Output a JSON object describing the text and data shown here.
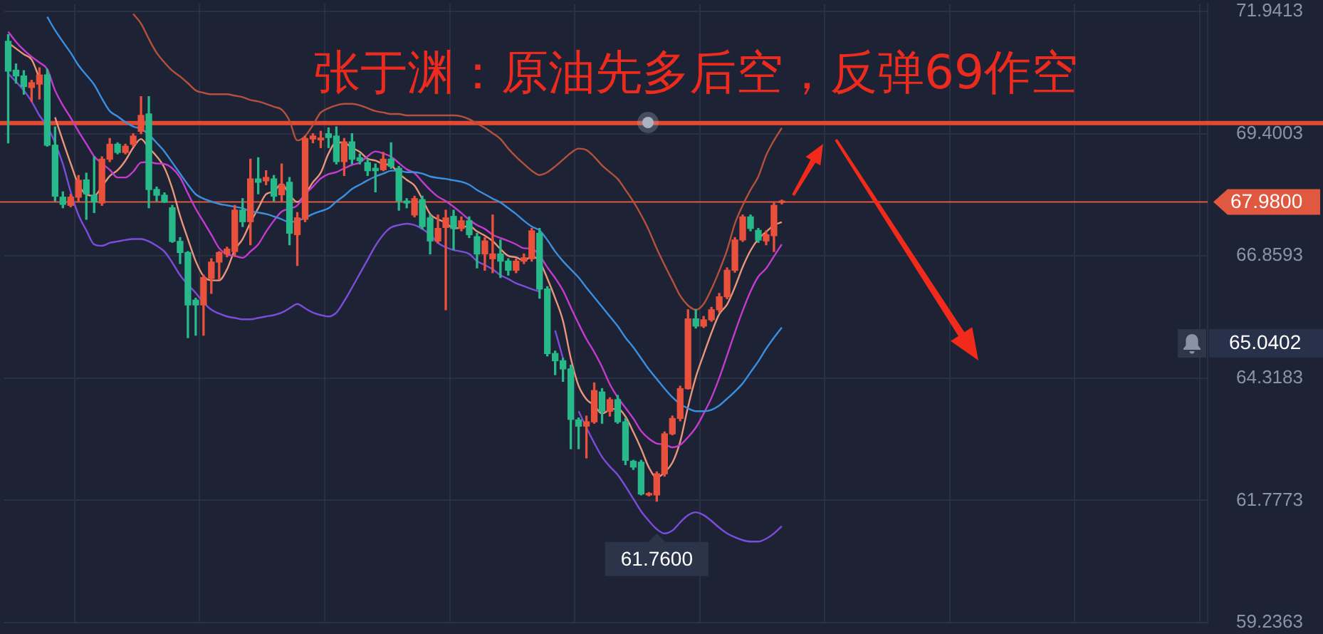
{
  "chart_data": {
    "type": "candlestick",
    "title": "张于渊：原油先多后空，反弹69作空",
    "categories": [
      null,
      null,
      null,
      null,
      null,
      null,
      null,
      null,
      null,
      null,
      null,
      null,
      null,
      null,
      null,
      null,
      null,
      null,
      null,
      null,
      null,
      null,
      null,
      null,
      null,
      null,
      null,
      null,
      null,
      null,
      null,
      null,
      null,
      null,
      null,
      null,
      null,
      null,
      null,
      null,
      null,
      null,
      null,
      null,
      null,
      null,
      null,
      null,
      null,
      null,
      null,
      null,
      null,
      null,
      null,
      null,
      null,
      null,
      null,
      null,
      null,
      null,
      null,
      null,
      null,
      null,
      null,
      null,
      null,
      null,
      null,
      null,
      null,
      null,
      null,
      null,
      null,
      null,
      null,
      null,
      null,
      null,
      null,
      null,
      null,
      null,
      null,
      null,
      null,
      null,
      null,
      null,
      null,
      null,
      null,
      null,
      null,
      null,
      null,
      null,
      null,
      null,
      null,
      null,
      null,
      null,
      null,
      null,
      null,
      null,
      null,
      null,
      null,
      null,
      null,
      null,
      null,
      null,
      null,
      null,
      null,
      null,
      null,
      null,
      null,
      null,
      null,
      null,
      null,
      null,
      null,
      null,
      null,
      null,
      null,
      null,
      null,
      null,
      null,
      null,
      null,
      null,
      null,
      null,
      null,
      null,
      null,
      null,
      null,
      null,
      null,
      null,
      null,
      null
    ],
    "ohlc": [
      [
        71.32,
        71.46,
        69.21,
        70.7
      ],
      [
        70.72,
        70.85,
        70.45,
        70.6
      ],
      [
        70.6,
        70.71,
        70.22,
        70.38
      ],
      [
        70.36,
        70.51,
        70.07,
        70.46
      ],
      [
        70.43,
        70.77,
        70.12,
        70.62
      ],
      [
        70.62,
        70.74,
        69.14,
        69.16
      ],
      [
        69.16,
        69.54,
        68.0,
        68.1
      ],
      [
        68.08,
        68.19,
        67.86,
        67.93
      ],
      [
        67.91,
        68.14,
        67.88,
        68.08
      ],
      [
        68.08,
        68.53,
        68.0,
        68.43
      ],
      [
        68.44,
        68.58,
        67.62,
        68.15
      ],
      [
        68.12,
        68.92,
        67.76,
        67.98
      ],
      [
        67.96,
        68.92,
        67.91,
        68.87
      ],
      [
        68.87,
        69.3,
        68.82,
        69.18
      ],
      [
        69.18,
        69.21,
        68.98,
        69.01
      ],
      [
        69.01,
        69.18,
        68.98,
        69.14
      ],
      [
        69.18,
        69.4,
        69.14,
        69.35
      ],
      [
        69.45,
        70.17,
        69.4,
        69.78
      ],
      [
        69.81,
        70.17,
        67.86,
        68.24
      ],
      [
        68.24,
        68.29,
        68.0,
        68.12
      ],
      [
        68.12,
        68.17,
        67.97,
        67.98
      ],
      [
        67.86,
        67.91,
        67.14,
        67.16
      ],
      [
        67.16,
        67.24,
        66.7,
        66.93
      ],
      [
        66.93,
        66.95,
        65.16,
        65.84
      ],
      [
        65.94,
        65.98,
        65.21,
        65.84
      ],
      [
        65.84,
        66.46,
        65.21,
        66.41
      ],
      [
        66.39,
        66.8,
        66.08,
        66.73
      ],
      [
        66.73,
        66.95,
        66.37,
        66.93
      ],
      [
        66.9,
        67.04,
        66.84,
        67.0
      ],
      [
        66.95,
        67.91,
        66.85,
        67.81
      ],
      [
        67.81,
        68.05,
        67.47,
        67.57
      ],
      [
        67.57,
        68.87,
        67.09,
        68.46
      ],
      [
        68.46,
        68.9,
        68.15,
        68.39
      ],
      [
        68.42,
        68.63,
        68.34,
        68.49
      ],
      [
        68.46,
        68.53,
        68.0,
        68.1
      ],
      [
        68.13,
        68.77,
        68.0,
        68.34
      ],
      [
        68.39,
        68.49,
        67.09,
        67.33
      ],
      [
        67.3,
        67.76,
        66.66,
        67.65
      ],
      [
        67.62,
        69.35,
        67.57,
        69.3
      ],
      [
        69.29,
        69.4,
        69.21,
        69.35
      ],
      [
        69.27,
        69.45,
        69.11,
        69.31
      ],
      [
        69.4,
        69.52,
        69.11,
        69.32
      ],
      [
        69.35,
        69.54,
        68.77,
        68.82
      ],
      [
        68.82,
        69.3,
        68.53,
        69.23
      ],
      [
        69.23,
        69.4,
        68.77,
        68.87
      ],
      [
        68.9,
        68.98,
        68.77,
        68.84
      ],
      [
        68.8,
        68.87,
        68.53,
        68.63
      ],
      [
        68.68,
        68.77,
        68.19,
        68.63
      ],
      [
        68.65,
        69.01,
        68.63,
        68.87
      ],
      [
        68.87,
        69.21,
        68.68,
        68.72
      ],
      [
        68.68,
        68.72,
        67.81,
        68.0
      ],
      [
        68.0,
        68.05,
        67.86,
        67.96
      ],
      [
        67.71,
        68.1,
        67.67,
        68.05
      ],
      [
        68.03,
        68.1,
        67.42,
        67.47
      ],
      [
        67.65,
        67.71,
        66.9,
        67.17
      ],
      [
        67.17,
        67.71,
        67.13,
        67.43
      ],
      [
        67.45,
        67.81,
        65.74,
        67.65
      ],
      [
        67.68,
        67.81,
        66.99,
        67.43
      ],
      [
        67.43,
        67.67,
        67.38,
        67.59
      ],
      [
        67.59,
        67.67,
        67.24,
        67.3
      ],
      [
        67.26,
        67.33,
        66.61,
        66.9
      ],
      [
        66.9,
        67.24,
        66.56,
        67.17
      ],
      [
        66.8,
        67.71,
        66.51,
        66.9
      ],
      [
        66.9,
        67.19,
        66.41,
        66.75
      ],
      [
        66.75,
        66.8,
        66.46,
        66.56
      ],
      [
        66.56,
        66.8,
        66.51,
        66.75
      ],
      [
        66.75,
        66.9,
        66.7,
        66.82
      ],
      [
        66.8,
        67.43,
        66.75,
        67.38
      ],
      [
        67.33,
        67.43,
        65.98,
        66.17
      ],
      [
        66.17,
        66.22,
        64.78,
        64.83
      ],
      [
        64.83,
        64.88,
        64.39,
        64.68
      ],
      [
        64.68,
        64.73,
        64.25,
        64.51
      ],
      [
        64.51,
        64.59,
        62.85,
        63.46
      ],
      [
        63.45,
        63.49,
        62.85,
        63.32
      ],
      [
        63.32,
        63.53,
        62.66,
        63.41
      ],
      [
        63.41,
        64.22,
        63.38,
        64.06
      ],
      [
        64.03,
        64.1,
        63.38,
        63.63
      ],
      [
        63.63,
        63.91,
        63.53,
        63.87
      ],
      [
        63.87,
        63.96,
        63.38,
        63.41
      ],
      [
        63.41,
        63.48,
        62.52,
        62.61
      ],
      [
        62.59,
        62.61,
        62.42,
        62.47
      ],
      [
        62.57,
        62.61,
        61.89,
        61.91
      ],
      [
        61.89,
        61.94,
        61.87,
        61.91
      ],
      [
        61.89,
        62.37,
        61.76,
        62.33
      ],
      [
        62.33,
        63.2,
        62.28,
        63.16
      ],
      [
        63.16,
        63.53,
        63.14,
        63.48
      ],
      [
        63.48,
        64.15,
        63.43,
        64.1
      ],
      [
        64.1,
        65.74,
        64.09,
        65.55
      ],
      [
        65.55,
        65.74,
        65.36,
        65.4
      ],
      [
        65.4,
        65.6,
        65.37,
        65.53
      ],
      [
        65.53,
        65.79,
        65.5,
        65.74
      ],
      [
        65.74,
        66.08,
        65.69,
        66.01
      ],
      [
        66.01,
        66.61,
        65.97,
        66.56
      ],
      [
        66.56,
        67.24,
        66.52,
        67.19
      ],
      [
        67.19,
        67.71,
        67.16,
        67.67
      ],
      [
        67.67,
        67.71,
        67.38,
        67.43
      ],
      [
        67.39,
        67.43,
        67.14,
        67.19
      ],
      [
        67.17,
        67.38,
        67.09,
        67.3
      ],
      [
        67.28,
        67.96,
        66.95,
        67.91
      ],
      [
        67.97,
        68.02,
        67.94,
        67.98
      ],
      null,
      null,
      null,
      null,
      null,
      null,
      null,
      null,
      null,
      null,
      null,
      null,
      null,
      null,
      null,
      null,
      null,
      null,
      null,
      null,
      null,
      null,
      null,
      null,
      null,
      null,
      null,
      null,
      null,
      null,
      null,
      null,
      null,
      null,
      null,
      null,
      null,
      null,
      null,
      null,
      null,
      null,
      null,
      null,
      null,
      null,
      null,
      null,
      null,
      null,
      null,
      null,
      null,
      null
    ],
    "colors": [
      "#27b98a",
      "#27b98a",
      "#27b98a",
      "#e9513d",
      "#e9513d",
      "#27b98a",
      "#27b98a",
      "#27b98a",
      "#e9513d",
      "#e9513d",
      "#27b98a",
      "#27b98a",
      "#e9513d",
      "#e9513d",
      "#27b98a",
      "#e9513d",
      "#e9513d",
      "#e9513d",
      "#27b98a",
      "#27b98a",
      "#27b98a",
      "#27b98a",
      "#27b98a",
      "#27b98a",
      "#27b98a",
      "#e9513d",
      "#e9513d",
      "#e9513d",
      "#e9513d",
      "#e9513d",
      "#27b98a",
      "#e9513d",
      "#27b98a",
      "#e9513d",
      "#27b98a",
      "#e9513d",
      "#27b98a",
      "#e9513d",
      "#e9513d",
      "#e9513d",
      "#e9513d",
      "#27b98a",
      "#27b98a",
      "#e9513d",
      "#27b98a",
      "#27b98a",
      "#27b98a",
      "#27b98a",
      "#e9513d",
      "#27b98a",
      "#27b98a",
      "#27b98a",
      "#e9513d",
      "#27b98a",
      "#27b98a",
      "#e9513d",
      "#e9513d",
      "#27b98a",
      "#e9513d",
      "#27b98a",
      "#27b98a",
      "#e9513d",
      "#e9513d",
      "#27b98a",
      "#27b98a",
      "#e9513d",
      "#e9513d",
      "#e9513d",
      "#27b98a",
      "#27b98a",
      "#27b98a",
      "#27b98a",
      "#27b98a",
      "#27b98a",
      "#e9513d",
      "#e9513d",
      "#27b98a",
      "#e9513d",
      "#27b98a",
      "#27b98a",
      "#27b98a",
      "#27b98a",
      "#e9513d",
      "#e9513d",
      "#e9513d",
      "#e9513d",
      "#e9513d",
      "#e9513d",
      "#27b98a",
      "#e9513d",
      "#e9513d",
      "#e9513d",
      "#e9513d",
      "#e9513d",
      "#e9513d",
      "#27b98a",
      "#27b98a",
      "#e9513d",
      "#e9513d",
      "#e9513d",
      null,
      null,
      null,
      null,
      null,
      null,
      null,
      null,
      null,
      null,
      null,
      null,
      null,
      null,
      null,
      null,
      null,
      null,
      null,
      null,
      null,
      null,
      null,
      null,
      null,
      null,
      null,
      null,
      null,
      null,
      null,
      null,
      null,
      null,
      null,
      null,
      null,
      null,
      null,
      null,
      null,
      null,
      null,
      null,
      null,
      null,
      null,
      null,
      null,
      null,
      null,
      null,
      null,
      null
    ],
    "series": [
      {
        "type": "line",
        "color": "#b4503c",
        "values": [
          null,
          null,
          null,
          null,
          null,
          null,
          null,
          null,
          null,
          null,
          null,
          null,
          null,
          null,
          null,
          null,
          71.89,
          71.69,
          71.37,
          71.08,
          70.88,
          70.71,
          70.59,
          70.45,
          70.3,
          70.25,
          70.22,
          70.22,
          70.22,
          70.19,
          70.16,
          70.1,
          70.07,
          70.02,
          69.96,
          69.9,
          69.67,
          69.26,
          69.35,
          69.58,
          69.84,
          69.93,
          69.99,
          70.02,
          70.02,
          69.99,
          69.93,
          69.87,
          69.84,
          69.81,
          69.81,
          69.78,
          69.78,
          69.78,
          69.78,
          69.78,
          69.78,
          69.78,
          69.76,
          69.7,
          69.61,
          69.52,
          69.41,
          69.29,
          69.09,
          68.92,
          68.77,
          68.63,
          68.54,
          68.6,
          68.72,
          68.86,
          69.0,
          69.09,
          69.06,
          68.92,
          68.74,
          68.6,
          68.46,
          68.23,
          67.99,
          67.71,
          67.39,
          67.01,
          66.67,
          66.35,
          66.03,
          65.83,
          65.74,
          65.86,
          66.17,
          66.55,
          66.98,
          67.53,
          67.91,
          68.23,
          68.51,
          68.95,
          69.26,
          69.52,
          null,
          null,
          null,
          null,
          null,
          null,
          null,
          null,
          null,
          null,
          null,
          null,
          null,
          null,
          null,
          null,
          null,
          null,
          null,
          null,
          null,
          null,
          null,
          null,
          null,
          null,
          null,
          null,
          null,
          null,
          null,
          null,
          null,
          null,
          null,
          null,
          null,
          null,
          null,
          null,
          null,
          null,
          null,
          null,
          null,
          null,
          null,
          null,
          null,
          null,
          null,
          null,
          null,
          null
        ]
      },
      {
        "type": "line",
        "color": "#3a8fe0",
        "values": [
          null,
          null,
          null,
          null,
          null,
          71.83,
          71.55,
          71.31,
          71.08,
          70.82,
          70.62,
          70.42,
          70.13,
          69.87,
          69.76,
          69.64,
          69.55,
          69.5,
          69.38,
          69.21,
          69.03,
          68.8,
          68.57,
          68.34,
          68.14,
          68.05,
          67.99,
          67.94,
          67.91,
          67.88,
          67.85,
          67.79,
          67.76,
          67.73,
          67.68,
          67.62,
          67.56,
          67.59,
          67.65,
          67.73,
          67.79,
          67.85,
          67.99,
          68.11,
          68.25,
          68.34,
          68.43,
          68.51,
          68.57,
          68.63,
          68.63,
          68.6,
          68.6,
          68.57,
          68.51,
          68.48,
          68.46,
          68.43,
          68.4,
          68.34,
          68.23,
          68.14,
          68.05,
          67.97,
          67.85,
          67.73,
          67.59,
          67.47,
          67.39,
          67.19,
          66.95,
          66.75,
          66.58,
          66.41,
          66.2,
          66.0,
          65.8,
          65.6,
          65.4,
          65.16,
          64.96,
          64.73,
          64.5,
          64.3,
          64.1,
          63.92,
          63.78,
          63.69,
          63.63,
          63.63,
          63.66,
          63.75,
          63.89,
          64.04,
          64.21,
          64.44,
          64.67,
          64.93,
          65.16,
          65.37,
          null,
          null,
          null,
          null,
          null,
          null,
          null,
          null,
          null,
          null,
          null,
          null,
          null,
          null,
          null,
          null,
          null,
          null,
          null,
          null,
          null,
          null,
          null,
          null,
          null,
          null,
          null,
          null,
          null,
          null,
          null,
          null,
          null,
          null,
          null,
          null,
          null,
          null,
          null,
          null,
          null,
          null,
          null,
          null,
          null,
          null,
          null,
          null,
          null,
          null,
          null,
          null,
          null,
          null
        ]
      },
      {
        "type": "line",
        "color": "#7c4ddc",
        "values": [
          70.65,
          70.48,
          70.3,
          70.07,
          69.78,
          69.55,
          69.21,
          68.77,
          68.19,
          67.71,
          67.39,
          67.1,
          67.07,
          67.13,
          67.16,
          67.19,
          67.21,
          67.21,
          67.16,
          67.07,
          66.95,
          66.72,
          66.46,
          66.26,
          66.09,
          65.89,
          65.74,
          65.66,
          65.6,
          65.57,
          65.54,
          65.54,
          65.57,
          65.6,
          65.63,
          65.68,
          65.77,
          65.86,
          65.77,
          65.68,
          65.63,
          65.6,
          65.68,
          65.92,
          66.2,
          66.49,
          66.78,
          67.07,
          67.3,
          67.45,
          67.5,
          67.53,
          67.5,
          67.42,
          67.3,
          67.13,
          67.04,
          66.98,
          66.95,
          66.9,
          66.75,
          66.67,
          66.58,
          66.46,
          66.38,
          66.29,
          66.23,
          66.17,
          66.12,
          null,
          65.31,
          64.73,
          null,
          63.63,
          63.29,
          62.97,
          62.68,
          62.48,
          62.31,
          62.07,
          61.81,
          61.55,
          61.35,
          61.18,
          61.09,
          61.15,
          61.32,
          61.47,
          61.53,
          61.47,
          61.35,
          61.21,
          61.09,
          61.01,
          60.95,
          60.92,
          60.92,
          60.98,
          61.09,
          61.24,
          null,
          null,
          null,
          null,
          null,
          null,
          null,
          null,
          null,
          null,
          null,
          null,
          null,
          null,
          null,
          null,
          null,
          null,
          null,
          null,
          null,
          null,
          null,
          null,
          null,
          null,
          null,
          null,
          null,
          null,
          null,
          null,
          null,
          null,
          null,
          null,
          null,
          null,
          null,
          null,
          null,
          null,
          null,
          null,
          null,
          null,
          null,
          null,
          null,
          null,
          null,
          null,
          null,
          null
        ]
      },
      {
        "type": "line",
        "color": "#c53bd0",
        "values": [
          71.52,
          71.31,
          71.14,
          71.0,
          70.88,
          70.74,
          70.3,
          69.99,
          69.73,
          69.45,
          69.19,
          68.93,
          68.78,
          68.65,
          68.49,
          68.49,
          68.61,
          68.8,
          68.81,
          68.78,
          68.77,
          68.68,
          68.49,
          68.16,
          67.84,
          67.57,
          67.3,
          67.02,
          66.89,
          66.86,
          66.82,
          66.95,
          67.1,
          67.36,
          67.59,
          67.78,
          67.84,
          67.91,
          68.14,
          68.3,
          68.47,
          68.56,
          68.6,
          68.68,
          68.75,
          68.8,
          68.93,
          69.03,
          68.99,
          68.92,
          68.79,
          68.66,
          68.58,
          68.4,
          68.23,
          68.09,
          68.0,
          67.88,
          67.75,
          67.61,
          67.5,
          67.42,
          67.3,
          67.23,
          67.17,
          67.1,
          67.02,
          67.01,
          66.87,
          66.62,
          66.4,
          66.14,
          65.79,
          65.45,
          65.13,
          64.86,
          64.55,
          64.19,
          63.92,
          63.7,
          63.48,
          63.22,
          63.06,
          62.96,
          62.94,
          62.88,
          62.93,
          63.09,
          63.29,
          63.58,
          63.91,
          64.32,
          64.79,
          65.27,
          65.72,
          66.12,
          66.43,
          66.6,
          66.85,
          67.1,
          null,
          null,
          null,
          null,
          null,
          null,
          null,
          null,
          null,
          null,
          null,
          null,
          null,
          null,
          null,
          null,
          null,
          null,
          null,
          null,
          null,
          null,
          null,
          null,
          null,
          null,
          null,
          null,
          null,
          null,
          null,
          null,
          null,
          null,
          null,
          null,
          null,
          null,
          null,
          null,
          null,
          null,
          null,
          null,
          null,
          null,
          null,
          null,
          null,
          null,
          null,
          null,
          null,
          null
        ]
      },
      {
        "type": "line",
        "color": "#e9967a",
        "values": [
          71.29,
          71.17,
          71.05,
          70.94,
          70.55,
          null,
          69.74,
          69.25,
          68.78,
          68.34,
          68.14,
          68.11,
          68.3,
          68.52,
          68.64,
          68.84,
          69.11,
          69.29,
          69.1,
          68.93,
          68.69,
          68.26,
          67.69,
          67.21,
          66.75,
          66.44,
          66.35,
          66.35,
          66.58,
          66.98,
          67.21,
          67.55,
          67.85,
          68.14,
          68.2,
          68.36,
          68.13,
          67.98,
          68.14,
          68.39,
          68.59,
          68.99,
          69.22,
          69.21,
          69.11,
          69.02,
          68.88,
          68.84,
          68.77,
          68.74,
          68.57,
          68.44,
          68.32,
          68.04,
          67.73,
          67.62,
          67.55,
          67.43,
          67.45,
          67.48,
          67.37,
          67.28,
          67.17,
          67.0,
          66.86,
          66.83,
          66.76,
          66.85,
          66.74,
          66.39,
          65.98,
          65.51,
          64.73,
          64.16,
          63.88,
          63.75,
          63.58,
          63.66,
          63.68,
          63.52,
          63.2,
          62.85,
          62.46,
          62.25,
          62.36,
          62.56,
          63.0,
          63.72,
          64.34,
          64.81,
          65.26,
          65.65,
          65.85,
          66.21,
          66.63,
          66.97,
          67.21,
          67.36,
          67.5,
          67.56,
          null,
          null,
          null,
          null,
          null,
          null,
          null,
          null,
          null,
          null,
          null,
          null,
          null,
          null,
          null,
          null,
          null,
          null,
          null,
          null,
          null,
          null,
          null,
          null,
          null,
          null,
          null,
          null,
          null,
          null,
          null,
          null,
          null,
          null,
          null,
          null,
          null,
          null,
          null,
          null,
          null,
          null,
          null,
          null,
          null,
          null,
          null,
          null,
          null,
          null,
          null,
          null,
          null,
          null
        ]
      }
    ],
    "ylim": [
      59.2363,
      72.09
    ],
    "yticks": [
      59.2363,
      61.7773,
      64.3183,
      66.8593,
      69.4003,
      71.9413
    ],
    "grid": true,
    "tick_labels": "y",
    "marker": "none",
    "ref_lines": [
      {
        "axis": "y",
        "value": 69.62,
        "color": "#e34a33"
      },
      {
        "axis": "y",
        "value": 67.98,
        "label": "67.9800",
        "color": "#e0583f"
      }
    ],
    "annotations": [
      {
        "text": "61.7600",
        "y": 61.76
      },
      "65.0402"
    ]
  }
}
